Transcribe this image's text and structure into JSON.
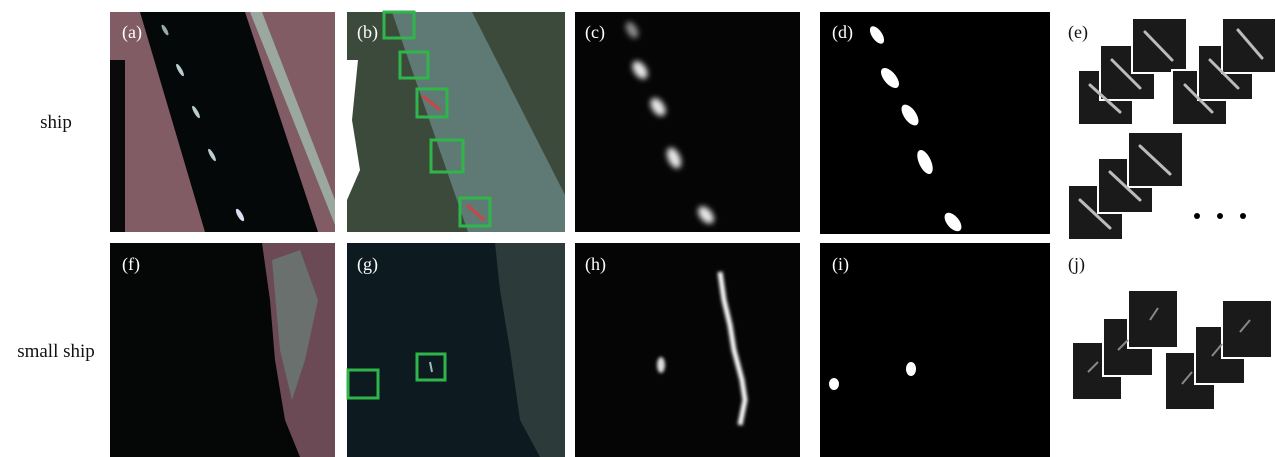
{
  "row_labels": [
    "ship",
    "small ship"
  ],
  "panels": [
    "(a)",
    "(b)",
    "(c)",
    "(d)",
    "(e)",
    "(f)",
    "(g)",
    "(h)",
    "(i)",
    "(j)"
  ]
}
